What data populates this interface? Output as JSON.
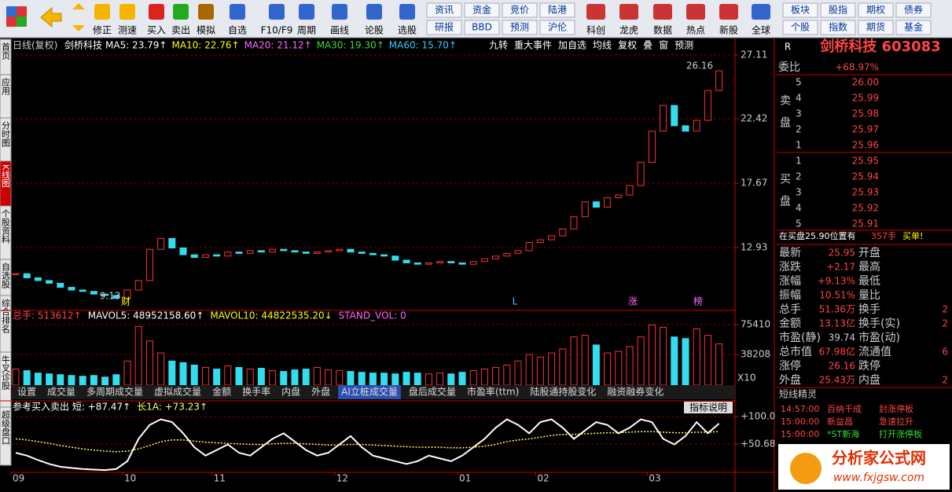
{
  "toolbar": {
    "buttons": [
      "修正",
      "测速",
      "买入",
      "卖出",
      "模拟",
      "自选",
      "F10/F9",
      "周期",
      "画线",
      "论股",
      "选股"
    ],
    "grid1": [
      [
        "资讯",
        "资金",
        "竞价",
        "陆港"
      ],
      [
        "研报",
        "BBD",
        "预测",
        "沪伦"
      ]
    ],
    "buttons2": [
      "科创",
      "龙虎",
      "数据",
      "热点",
      "新股",
      "全球"
    ],
    "grid2": [
      [
        "板块",
        "股指",
        "期权",
        "债券"
      ],
      [
        "个股",
        "指数",
        "期货",
        "基金"
      ]
    ]
  },
  "side_tabs": [
    "首页",
    "应用",
    "分时图",
    "K线图",
    "个股资料",
    "自选股",
    "综合排名",
    "牛叉诊股",
    "超级盘口"
  ],
  "chart_header": {
    "period": "日线(复权)",
    "name": "剑桥科技",
    "buttons": [
      "九转",
      "重大事件",
      "加自选",
      "均线",
      "复权",
      "叠",
      "窗",
      "预测"
    ]
  },
  "chart_data": [
    {
      "type": "candle",
      "legend": [
        {
          "text": "MA5: 23.79↑",
          "color": "#ffffff"
        },
        {
          "text": "MA10: 22.76↑",
          "color": "#ffff00"
        },
        {
          "text": "MA20: 21.12↑",
          "color": "#ff66ff"
        },
        {
          "text": "MA30: 19.30↑",
          "color": "#33dd33"
        },
        {
          "text": "MA60: 15.70↑",
          "color": "#33ccff"
        }
      ],
      "categories": [
        "09",
        null,
        null,
        null,
        null,
        null,
        null,
        null,
        null,
        null,
        "10",
        null,
        null,
        null,
        null,
        null,
        null,
        null,
        "11",
        null,
        null,
        null,
        null,
        null,
        null,
        null,
        null,
        null,
        null,
        "12",
        null,
        null,
        null,
        null,
        null,
        null,
        null,
        null,
        null,
        null,
        "01",
        null,
        null,
        null,
        null,
        null,
        null,
        "02",
        null,
        null,
        null,
        null,
        null,
        null,
        null,
        null,
        null,
        "03",
        null,
        null,
        null,
        null,
        null,
        null
      ],
      "values": [
        11.0,
        10.7,
        10.5,
        10.3,
        10.0,
        9.8,
        9.7,
        9.5,
        9.4,
        9.2,
        9.8,
        10.5,
        12.8,
        13.6,
        12.9,
        12.4,
        12.2,
        12.4,
        12.3,
        12.6,
        12.5,
        12.7,
        12.6,
        12.8,
        12.7,
        12.6,
        12.5,
        12.6,
        12.7,
        12.8,
        12.6,
        12.5,
        12.4,
        12.3,
        12.0,
        11.8,
        11.7,
        11.8,
        11.9,
        11.8,
        11.7,
        11.9,
        12.1,
        12.3,
        12.5,
        12.7,
        13.3,
        13.5,
        13.8,
        14.3,
        15.2,
        16.3,
        15.9,
        16.6,
        16.8,
        17.5,
        19.2,
        21.5,
        23.4,
        21.9,
        21.5,
        22.3,
        24.5,
        25.95
      ],
      "up_color": "#ff3232",
      "down_color": "#33ddee",
      "ylim": [
        8.47,
        27.69
      ],
      "yticks": [
        27.11,
        22.42,
        17.67,
        12.93
      ],
      "grid": true,
      "annotations": [
        "26.16",
        "9.13"
      ],
      "markers": [
        "财",
        "L",
        "涨",
        "榜"
      ]
    },
    {
      "type": "bar",
      "legend": [
        {
          "text": "总手: 513612↑",
          "color": "#ff4444"
        },
        {
          "text": "MAVOL5: 48952158.60↑",
          "color": "#ffffff"
        },
        {
          "text": "MAVOL10: 44822535.20↓",
          "color": "#ffff00"
        },
        {
          "text": "STAND_VOL: 0",
          "color": "#ff66ff"
        }
      ],
      "values": [
        20000,
        18000,
        15000,
        14000,
        13000,
        12000,
        11000,
        12000,
        10000,
        13000,
        30000,
        73000,
        55000,
        40000,
        30000,
        28000,
        25000,
        22000,
        20000,
        24000,
        22000,
        20000,
        21000,
        18000,
        17000,
        19000,
        20000,
        22000,
        19000,
        18000,
        17000,
        16000,
        15000,
        15000,
        14000,
        16000,
        15000,
        14000,
        15000,
        14000,
        16000,
        18000,
        20000,
        22000,
        25000,
        30000,
        38000,
        35000,
        40000,
        45000,
        60000,
        62000,
        50000,
        40000,
        42000,
        48000,
        60000,
        75000,
        72000,
        60000,
        58000,
        70000,
        62000,
        51361
      ],
      "ylim": [
        0,
        93000
      ],
      "yticks": [
        75410,
        38208
      ],
      "unit_label": "X10",
      "grid": true,
      "tabs": [
        "设置",
        "成交量",
        "多周期成交量",
        "虚拟成交量",
        "金额",
        "换手率",
        "内盘",
        "外盘",
        "AI立桩成交量",
        "盘后成交量",
        "市盈率(ttm)",
        "陆股通持股变化",
        "融资融券变化"
      ]
    },
    {
      "type": "line",
      "legend": [
        {
          "text": "参考买入卖出 短: +87.47↑",
          "color": "#ffffff"
        },
        {
          "text": "长1A: +73.23↑",
          "color": "#ffff66"
        }
      ],
      "button": "指标说明",
      "series": [
        {
          "name": "短",
          "color": "#ffffff",
          "values": [
            35,
            30,
            22,
            15,
            10,
            8,
            6,
            5,
            4,
            6,
            20,
            60,
            85,
            95,
            90,
            70,
            45,
            30,
            40,
            50,
            35,
            30,
            45,
            60,
            70,
            55,
            40,
            30,
            35,
            50,
            65,
            45,
            30,
            25,
            20,
            15,
            20,
            30,
            25,
            20,
            30,
            45,
            60,
            80,
            95,
            85,
            70,
            90,
            95,
            80,
            60,
            75,
            90,
            85,
            70,
            80,
            95,
            90,
            60,
            50,
            65,
            90,
            70,
            87.47
          ]
        },
        {
          "name": "长1A",
          "color": "#ffff66",
          "values": [
            60,
            58,
            55,
            52,
            48,
            45,
            42,
            40,
            38,
            37,
            38,
            42,
            48,
            55,
            58,
            58,
            56,
            54,
            53,
            52,
            51,
            50,
            50,
            51,
            52,
            52,
            51,
            50,
            49,
            49,
            50,
            50,
            49,
            48,
            47,
            46,
            45,
            45,
            45,
            44,
            44,
            45,
            47,
            50,
            55,
            58,
            60,
            63,
            66,
            68,
            68,
            69,
            70,
            71,
            71,
            72,
            73,
            73,
            72,
            71,
            71,
            72,
            72,
            73.23
          ]
        }
      ],
      "ylim": [
        0,
        107
      ],
      "yticks": [
        {
          "value": 100,
          "label": "+100.0"
        },
        {
          "value": 50.68,
          "label": "+50.68"
        }
      ]
    }
  ],
  "quote": {
    "name": "剑桥科技 603083",
    "flag": "R",
    "weibi_label": "委比",
    "weibi": "+68.97%",
    "sell_label": "卖盘",
    "buy_label": "买盘",
    "asks": [
      [
        "5",
        "26.00"
      ],
      [
        "4",
        "25.99"
      ],
      [
        "3",
        "25.98"
      ],
      [
        "2",
        "25.97"
      ],
      [
        "1",
        "25.96"
      ]
    ],
    "bids": [
      [
        "1",
        "25.95"
      ],
      [
        "2",
        "25.94"
      ],
      [
        "3",
        "25.93"
      ],
      [
        "4",
        "25.92"
      ],
      [
        "5",
        "25.91"
      ]
    ],
    "notice": [
      "在买盘25.90位置有",
      "357手",
      "买单!"
    ],
    "stats": [
      [
        "最新",
        "25.95",
        "开盘"
      ],
      [
        "涨跌",
        "+2.17",
        "最高"
      ],
      [
        "涨幅",
        "+9.13%",
        "最低"
      ],
      [
        "振幅",
        "10.51%",
        "量比"
      ],
      [
        "总手",
        "51.36万",
        "换手",
        "2"
      ],
      [
        "金额",
        "13.13亿",
        "换手(实)",
        "2"
      ],
      [
        "市盈(静)",
        "39.74",
        "市盈(动)"
      ],
      [
        "总市值",
        "67.98亿",
        "流通值",
        "6"
      ],
      [
        "涨停",
        "26.16",
        "跌停"
      ],
      [
        "外盘",
        "25.43万",
        "内盘",
        "2"
      ]
    ]
  },
  "sprite": {
    "title": "短线精灵",
    "events": [
      [
        "14:57:00",
        "百纳千成",
        "封涨停板"
      ],
      [
        "15:00:00",
        "新益昌",
        "急速拉升"
      ],
      [
        "15:00:00",
        "*ST新海",
        "打开涨停板"
      ]
    ]
  },
  "watermark": {
    "name": "分析家公式网",
    "url": "www.fxjgsw.com"
  }
}
